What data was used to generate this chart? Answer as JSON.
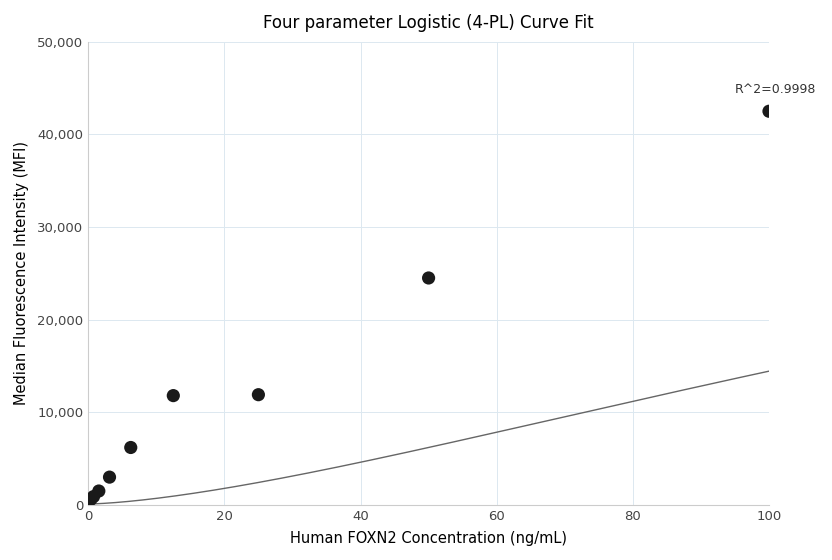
{
  "title": "Four parameter Logistic (4-PL) Curve Fit",
  "xlabel": "Human FOXN2 Concentration (ng/mL)",
  "ylabel": "Median Fluorescence Intensity (MFI)",
  "scatter_x": [
    0.39,
    0.78,
    1.56,
    3.13,
    6.25,
    12.5,
    25.0,
    50.0,
    100.0
  ],
  "scatter_y": [
    600,
    900,
    1500,
    3000,
    6200,
    11800,
    12000,
    24500,
    42500
  ],
  "r_squared": "R^2=0.9998",
  "xlim": [
    0,
    100
  ],
  "ylim": [
    0,
    50000
  ],
  "xticks": [
    0,
    20,
    40,
    60,
    80,
    100
  ],
  "yticks": [
    0,
    10000,
    20000,
    30000,
    40000,
    50000
  ],
  "dot_color": "#1a1a1a",
  "line_color": "#666666",
  "background_color": "#ffffff",
  "grid_color": "#dce8f0",
  "title_fontsize": 12,
  "label_fontsize": 10.5,
  "tick_fontsize": 9.5,
  "annotation_fontsize": 9
}
